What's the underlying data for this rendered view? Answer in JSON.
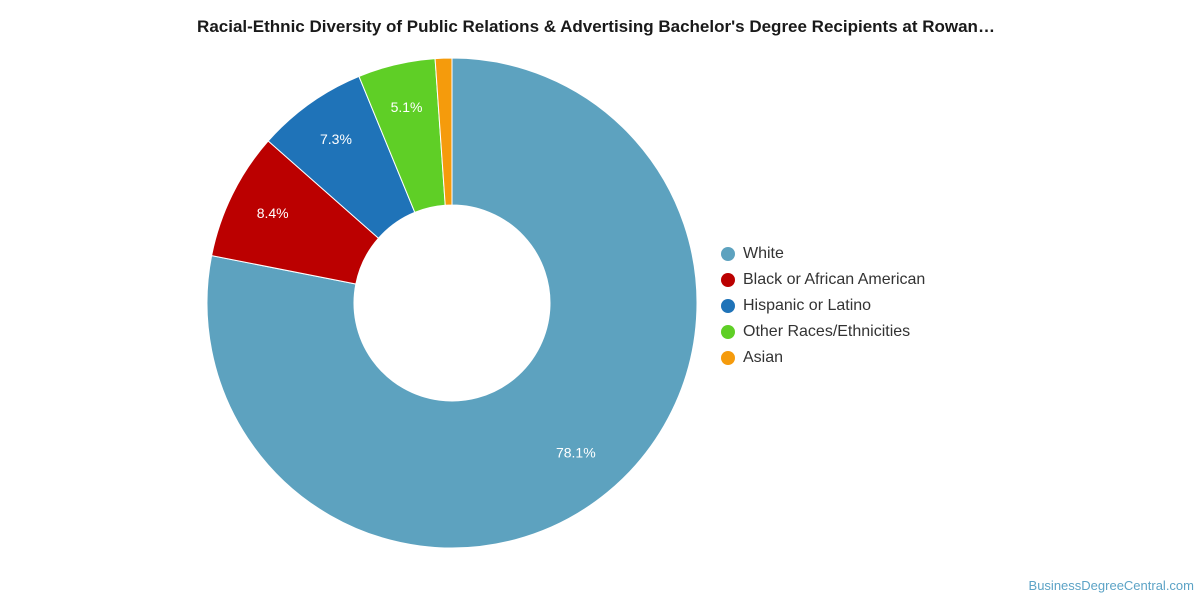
{
  "chart_data": {
    "type": "pie",
    "title": "Racial-Ethnic Diversity of Public Relations & Advertising Bachelor's Degree Recipients at Rowan…",
    "legend_position": "right",
    "donut": true,
    "slices": [
      {
        "label": "White",
        "value": 78.1,
        "value_label": "78.1%",
        "color": "#5da2bf"
      },
      {
        "label": "Black or African American",
        "value": 8.4,
        "value_label": "8.4%",
        "color": "#bb0000"
      },
      {
        "label": "Hispanic or Latino",
        "value": 7.3,
        "value_label": "7.3%",
        "color": "#1f73b8"
      },
      {
        "label": "Other Races/Ethnicities",
        "value": 5.1,
        "value_label": "5.1%",
        "color": "#5fcf26"
      },
      {
        "label": "Asian",
        "value": 1.1,
        "value_label": "",
        "color": "#f59b0c"
      }
    ]
  },
  "footer": {
    "source": "BusinessDegreeCentral.com"
  }
}
